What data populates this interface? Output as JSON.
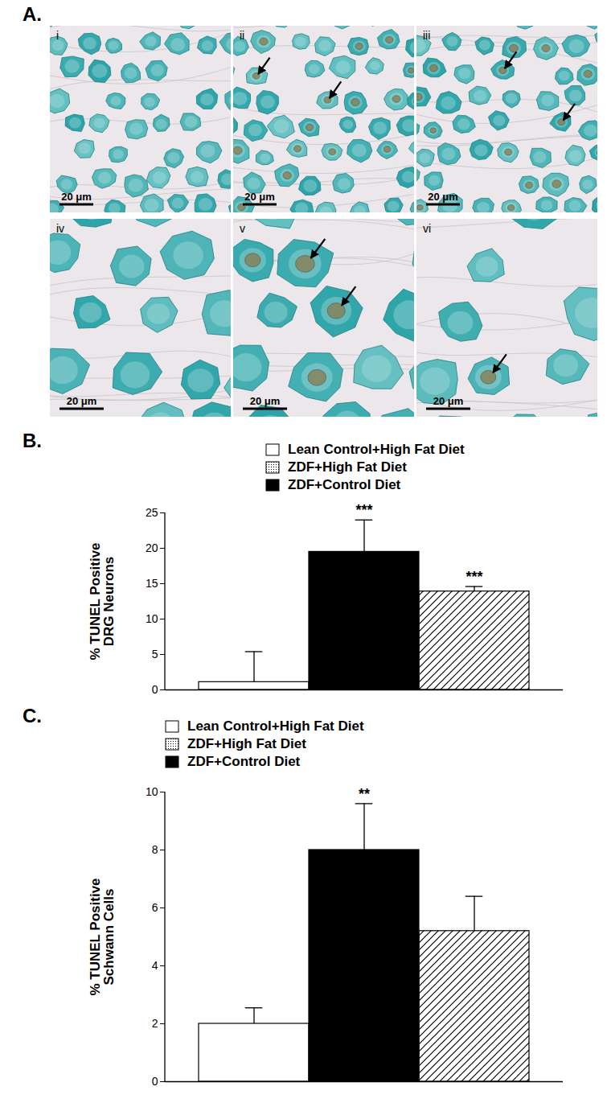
{
  "panels": [
    "A.",
    "B.",
    "C."
  ],
  "micrographs": [
    {
      "label": "i",
      "scale_bar": "20 μm"
    },
    {
      "label": "ii",
      "scale_bar": "20 μm"
    },
    {
      "label": "iii",
      "scale_bar": "20 μm"
    },
    {
      "label": "iv",
      "scale_bar": "20 μm"
    },
    {
      "label": "v",
      "scale_bar": "20 μm"
    },
    {
      "label": "vi",
      "scale_bar": "20 μm"
    }
  ],
  "chart_data": [
    {
      "type": "bar",
      "ylabel": "% TUNEL Positive\nDRG Neurons",
      "categories": [
        null,
        null,
        null
      ],
      "ylim": [
        0,
        25
      ],
      "yticks": [
        0,
        5,
        10,
        15,
        20,
        25
      ],
      "tick_labels": "y",
      "legend": "top",
      "series": [
        {
          "name": "Lean Control+High Fat Diet",
          "color": "#ffffff",
          "values": [
            1.1,
            null,
            null
          ],
          "errors": [
            4.3,
            null,
            null
          ]
        },
        {
          "name": "ZDF+High Fat Diet",
          "color": "#ffffff",
          "line_style": "hatched",
          "values": [
            null,
            null,
            13.9
          ],
          "errors": [
            null,
            null,
            0.7
          ],
          "annotations": [
            null,
            null,
            "***"
          ]
        },
        {
          "name": "ZDF+Control Diet",
          "color": "#000000",
          "values": [
            null,
            19.5,
            null
          ],
          "errors": [
            null,
            4.5,
            null
          ],
          "annotations": [
            null,
            "***",
            null
          ]
        }
      ]
    },
    {
      "type": "bar",
      "ylabel": "% TUNEL Positive\nSchwann Cells",
      "categories": [
        null,
        null,
        null
      ],
      "ylim": [
        0,
        10
      ],
      "yticks": [
        0,
        2,
        4,
        6,
        8,
        10
      ],
      "tick_labels": "y",
      "legend": "top",
      "series": [
        {
          "name": "Lean Control+High Fat Diet",
          "color": "#ffffff",
          "values": [
            2.0,
            null,
            null
          ],
          "errors": [
            0.55,
            null,
            null
          ]
        },
        {
          "name": "ZDF+High Fat Diet",
          "color": "#ffffff",
          "line_style": "hatched",
          "values": [
            null,
            null,
            5.2
          ],
          "errors": [
            null,
            null,
            1.2
          ]
        },
        {
          "name": "ZDF+Control Diet",
          "color": "#000000",
          "values": [
            null,
            8.0,
            null
          ],
          "errors": [
            null,
            1.6,
            null
          ],
          "annotations": [
            null,
            "**",
            null
          ]
        }
      ]
    }
  ]
}
